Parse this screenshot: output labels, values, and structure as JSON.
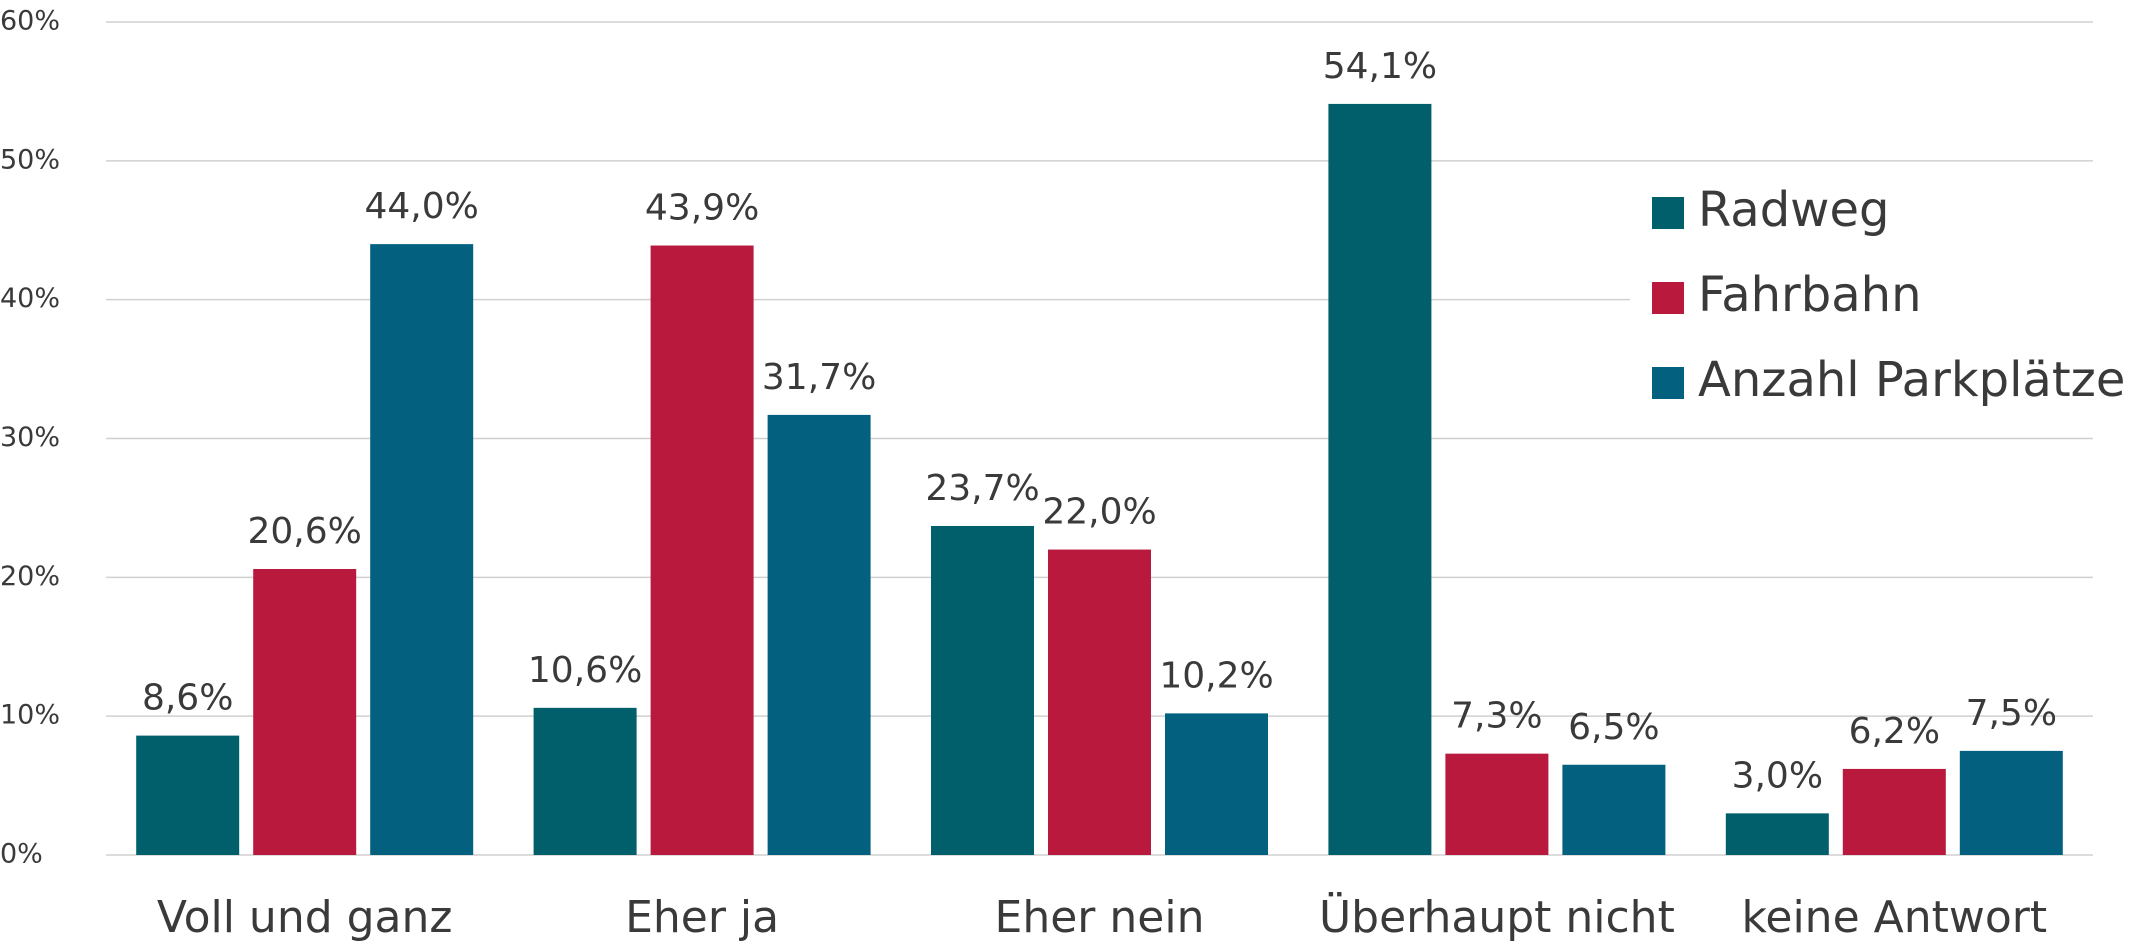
{
  "chart_data": {
    "type": "bar",
    "categories": [
      "Voll und ganz",
      "Eher ja",
      "Eher nein",
      "Überhaupt nicht",
      "keine Antwort"
    ],
    "series": [
      {
        "name": "Radweg",
        "color": "#005f6a",
        "values": [
          8.6,
          10.6,
          23.7,
          54.1,
          3.0
        ],
        "value_labels": [
          "8,6%",
          "10,6%",
          "23,7%",
          "54,1%",
          "3,0%"
        ]
      },
      {
        "name": "Fahrbahn",
        "color": "#b8193c",
        "values": [
          20.6,
          43.9,
          22.0,
          7.3,
          6.2
        ],
        "value_labels": [
          "20,6%",
          "43,9%",
          "22,0%",
          "7,3%",
          "6,2%"
        ]
      },
      {
        "name": "Anzahl Parkplätze",
        "color": "#03617f",
        "values": [
          44.0,
          31.7,
          10.2,
          6.5,
          7.5
        ],
        "value_labels": [
          "44,0%",
          "31,7%",
          "10,2%",
          "6,5%",
          "7,5%"
        ]
      }
    ],
    "ylim": [
      0,
      60
    ],
    "yticks": [
      {
        "value": 0,
        "label": "0%"
      },
      {
        "value": 10,
        "label": "10%"
      },
      {
        "value": 20,
        "label": "20%"
      },
      {
        "value": 30,
        "label": "30%"
      },
      {
        "value": 40,
        "label": "40%"
      },
      {
        "value": 50,
        "label": "50%"
      },
      {
        "value": 60,
        "label": "60%"
      }
    ],
    "grid": true,
    "legend": "upper right"
  }
}
